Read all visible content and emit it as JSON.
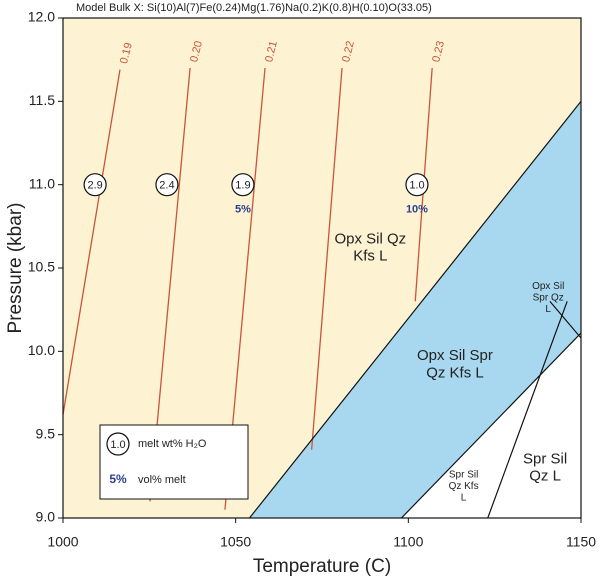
{
  "chart_data": {
    "type": "phase-diagram",
    "title": "Model Bulk X: Si(10)Al(7)Fe(0.24)Mg(1.76)Na(0.2)K(0.8)H(0.10)O(33.05)",
    "x_label": "Temperature (C)",
    "y_label": "Pressure (kbar)",
    "xlim": [
      1000,
      1150
    ],
    "ylim": [
      9,
      12
    ],
    "xticks": [
      1000,
      1050,
      1100,
      1150
    ],
    "yticks": [
      {
        "value": 9,
        "label": "9.0"
      },
      9.5,
      {
        "value": 10,
        "label": "10.0"
      },
      10.5,
      {
        "value": 11,
        "label": "11.0"
      },
      11.5,
      {
        "value": 12,
        "label": "12.0"
      }
    ],
    "fields": [
      {
        "color": "#fdf3d3",
        "polygon": {
          "x": [
            1000,
            1054,
            1150,
            1150,
            1000
          ],
          "y": [
            9,
            9,
            11.5,
            12,
            12
          ]
        }
      },
      {
        "color": "#a8d8ef",
        "polygon": {
          "x": [
            1054,
            1098,
            1150,
            1150
          ],
          "y": [
            9,
            9,
            10.11,
            11.5
          ]
        }
      },
      {
        "color": "#ffffff",
        "polygon": {
          "x": [
            1098,
            1150,
            1150
          ],
          "y": [
            9,
            9,
            10.11
          ]
        }
      }
    ],
    "field_labels": [
      {
        "lines": [
          "Opx Sil Qz",
          "Kfs L"
        ],
        "x": 1089,
        "y": 10.62
      },
      {
        "lines": [
          "Opx Sil Spr",
          "Qz Kfs L"
        ],
        "x": 1113.5,
        "y": 9.92
      },
      {
        "lines": [
          "Opx Sil",
          "Spr Qz",
          "L"
        ],
        "x": 1140.5,
        "y": 10.32
      },
      {
        "lines": [
          "Spr Sil",
          "Qz Kfs",
          "L"
        ],
        "x": 1116,
        "y": 9.19
      },
      {
        "lines": [
          "Spr Sil",
          "Qz L"
        ],
        "x": 1139.6,
        "y": 9.3
      }
    ],
    "boundaries": [
      {
        "x": [
          1054,
          1150
        ],
        "y": [
          9,
          11.5
        ]
      },
      {
        "x": [
          1098,
          1150
        ],
        "y": [
          9,
          10.11
        ]
      },
      {
        "x": [
          1123,
          1146
        ],
        "y": [
          9,
          10.3
        ]
      },
      {
        "x": [
          1141,
          1150
        ],
        "y": [
          10.3,
          10.08
        ]
      }
    ],
    "isopleth_color": "#c8553a",
    "isopleths": [
      {
        "label": "0.19",
        "x": [
          1000,
          1016.5
        ],
        "y": [
          9.62,
          11.69
        ]
      },
      {
        "label": "0.20",
        "x": [
          1025.2,
          1036.8
        ],
        "y": [
          9.1,
          11.7
        ]
      },
      {
        "label": "0.21",
        "x": [
          1046.9,
          1058.5
        ],
        "y": [
          9.05,
          11.7
        ]
      },
      {
        "label": "0.22",
        "x": [
          1072,
          1080.8
        ],
        "y": [
          9.41,
          11.7
        ]
      },
      {
        "label": "0.23",
        "x": [
          1102,
          1106.9
        ],
        "y": [
          10.3,
          11.7
        ]
      }
    ],
    "melt_water": {
      "values": [
        2.9,
        2.4,
        1.9,
        1.0
      ],
      "value_labels": [
        "2.9",
        "2.4",
        "1.9",
        "1.0"
      ],
      "x": [
        1009.3,
        1030.1,
        1052.1,
        1102.5
      ],
      "y": [
        11,
        11,
        11,
        11
      ]
    },
    "melt_volume": {
      "color": "#2a3f8f",
      "values": [
        5,
        10
      ],
      "value_labels": [
        "5%",
        "10%"
      ],
      "x": [
        1052.1,
        1102.5
      ],
      "y": [
        10.85,
        10.85
      ]
    },
    "legend": [
      {
        "symbol": "1.0",
        "text": "melt wt% H₂O"
      },
      {
        "symbol": "5%",
        "text": "vol% melt"
      }
    ]
  }
}
